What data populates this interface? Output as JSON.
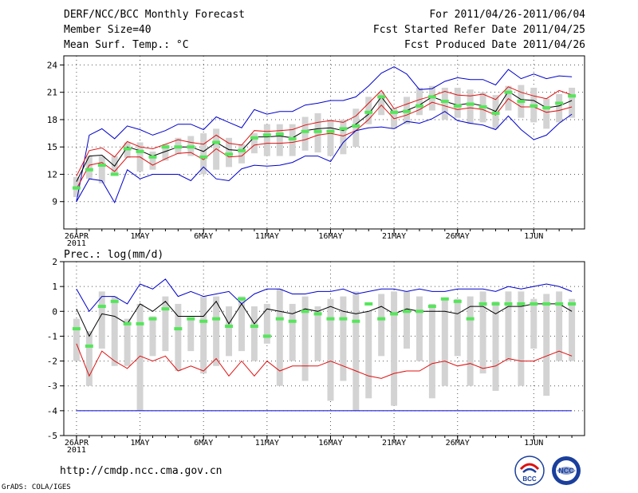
{
  "header": {
    "title": "DERF/NCC/BCC Monthly Forecast",
    "member_size": "Member Size=40",
    "variable": "Mean Surf. Temp.: °C",
    "period": "For 2011/04/26-2011/06/04",
    "started": "Fcst Started Refer Date 2011/04/25",
    "produced": "Fcst Produced Date 2011/04/26"
  },
  "footer": {
    "url": "http://cmdp.ncc.cma.gov.cn",
    "grads": "GrADS: COLA/IGES",
    "logo_bcc": "BCC",
    "logo_ncc": "NCC"
  },
  "colors": {
    "box": "#d3d3d3",
    "median": "#55e65a",
    "mean": "#000000",
    "inner": "#e01010",
    "outer": "#0000cc"
  },
  "chart_data": [
    {
      "type": "line",
      "title": "Mean Surf. Temp.: °C",
      "x_tick_labels": [
        "26APR",
        "1MAY",
        "6MAY",
        "11MAY",
        "16MAY",
        "21MAY",
        "26MAY",
        "1JUN"
      ],
      "x_tick_days": [
        1,
        6,
        11,
        16,
        21,
        26,
        31,
        37
      ],
      "year_label": "2011",
      "xlim": [
        0,
        41
      ],
      "ylim": [
        6,
        25
      ],
      "yticks": [
        9,
        12,
        15,
        18,
        21,
        24
      ],
      "ytick_labels": [
        "9",
        "12",
        "15",
        "18",
        "21",
        "24"
      ],
      "days": [
        1,
        2,
        3,
        4,
        5,
        6,
        7,
        8,
        9,
        10,
        11,
        12,
        13,
        14,
        15,
        16,
        17,
        18,
        19,
        20,
        21,
        22,
        23,
        24,
        25,
        26,
        27,
        28,
        29,
        30,
        31,
        32,
        33,
        34,
        35,
        36,
        37,
        38,
        39,
        40
      ],
      "series": [
        {
          "name": "max",
          "values": [
            9.0,
            16.3,
            17.0,
            15.9,
            17.3,
            16.9,
            16.3,
            16.8,
            17.5,
            17.5,
            16.9,
            18.3,
            17.7,
            17.1,
            19.1,
            18.6,
            18.9,
            18.9,
            19.6,
            19.8,
            20.1,
            20.1,
            20.5,
            21.7,
            23.1,
            23.8,
            23.0,
            21.3,
            21.4,
            22.2,
            22.6,
            22.4,
            22.4,
            21.8,
            23.5,
            22.5,
            23.0,
            22.5,
            22.8,
            22.7
          ]
        },
        {
          "name": "upper",
          "values": [
            11.8,
            14.6,
            14.9,
            13.9,
            15.6,
            15.0,
            14.8,
            15.3,
            15.8,
            15.5,
            15.3,
            16.3,
            15.4,
            15.2,
            16.8,
            16.7,
            16.8,
            16.9,
            17.4,
            17.7,
            17.9,
            17.7,
            18.4,
            19.8,
            21.2,
            19.2,
            19.7,
            20.2,
            20.6,
            21.1,
            20.7,
            20.6,
            20.8,
            20.2,
            21.6,
            21.0,
            20.6,
            20.3,
            21.2,
            20.7
          ]
        },
        {
          "name": "mean",
          "values": [
            11.2,
            14.0,
            14.1,
            12.9,
            15.0,
            14.6,
            14.0,
            14.5,
            15.0,
            15.0,
            14.5,
            15.5,
            14.7,
            14.6,
            16.1,
            16.1,
            16.2,
            16.0,
            16.8,
            17.0,
            17.1,
            16.8,
            17.5,
            18.6,
            20.5,
            18.7,
            19.0,
            19.6,
            20.5,
            20.0,
            19.6,
            19.8,
            19.5,
            18.9,
            21.1,
            20.2,
            20.1,
            19.3,
            19.5,
            20.1
          ]
        },
        {
          "name": "lower",
          "values": [
            10.4,
            13.0,
            13.3,
            12.3,
            13.9,
            13.9,
            13.0,
            13.7,
            14.3,
            14.4,
            13.6,
            14.8,
            13.9,
            14.0,
            15.2,
            15.4,
            15.4,
            15.5,
            15.8,
            16.3,
            16.5,
            16.2,
            16.8,
            18.0,
            19.6,
            18.1,
            18.5,
            19.1,
            19.9,
            19.5,
            19.1,
            19.3,
            19.1,
            18.5,
            20.3,
            19.4,
            19.4,
            18.8,
            19.0,
            19.4
          ]
        },
        {
          "name": "min",
          "values": [
            9.0,
            11.5,
            11.3,
            8.9,
            12.5,
            11.5,
            12.0,
            12.0,
            12.0,
            11.3,
            12.8,
            11.5,
            11.3,
            12.6,
            13.0,
            12.9,
            13.0,
            13.3,
            14.0,
            14.0,
            13.4,
            15.5,
            16.8,
            17.1,
            17.2,
            17.0,
            17.8,
            17.6,
            18.1,
            18.9,
            17.9,
            17.6,
            17.4,
            16.9,
            18.4,
            16.9,
            15.8,
            16.3,
            17.6,
            18.6
          ]
        },
        {
          "name": "box_top",
          "values": [
            11.7,
            14.0,
            14.0,
            14.0,
            15.5,
            15.5,
            14.5,
            15.3,
            16.0,
            16.2,
            16.5,
            17.0,
            16.0,
            15.3,
            16.5,
            17.5,
            17.5,
            17.5,
            18.3,
            18.7,
            18.0,
            18.0,
            19.2,
            20.5,
            21.0,
            19.3,
            20.5,
            21.5,
            21.7,
            21.5,
            21.5,
            21.3,
            21.0,
            20.7,
            21.7,
            21.8,
            21.5,
            20.3,
            20.8,
            21.5
          ]
        },
        {
          "name": "box_bottom",
          "values": [
            9.5,
            11.5,
            11.0,
            12.0,
            13.8,
            12.3,
            12.5,
            13.5,
            14.2,
            14.0,
            12.0,
            12.5,
            12.8,
            13.2,
            14.3,
            14.0,
            14.0,
            14.0,
            14.6,
            14.4,
            14.0,
            14.2,
            15.0,
            17.5,
            18.5,
            17.0,
            17.5,
            18.5,
            19.0,
            18.0,
            18.2,
            17.5,
            17.7,
            17.0,
            19.0,
            18.2,
            17.7,
            17.0,
            17.7,
            18.2
          ]
        },
        {
          "name": "median",
          "values": [
            10.5,
            12.5,
            13.0,
            12.0,
            14.8,
            14.5,
            13.9,
            15.0,
            15.0,
            15.0,
            13.9,
            15.5,
            14.2,
            14.6,
            16.0,
            16.3,
            16.4,
            15.9,
            16.7,
            16.7,
            16.7,
            17.0,
            17.3,
            18.8,
            20.5,
            18.8,
            18.9,
            19.5,
            20.5,
            20.0,
            19.5,
            19.7,
            19.4,
            18.7,
            21.0,
            20.0,
            19.5,
            19.3,
            19.8,
            20.6
          ]
        }
      ]
    },
    {
      "type": "line",
      "title": "Prec.: log(mm/d)",
      "x_tick_labels": [
        "26APR",
        "1MAY",
        "6MAY",
        "11MAY",
        "16MAY",
        "21MAY",
        "26MAY",
        "1JUN"
      ],
      "x_tick_days": [
        1,
        6,
        11,
        16,
        21,
        26,
        31,
        37
      ],
      "year_label": "2011",
      "xlim": [
        0,
        41
      ],
      "ylim": [
        -5,
        2
      ],
      "yticks": [
        -5,
        -4,
        -3,
        -2,
        -1,
        0,
        1,
        2
      ],
      "ytick_labels": [
        "-5",
        "-4",
        "-3",
        "-2",
        "-1",
        "0",
        "1",
        "2"
      ],
      "days": [
        1,
        2,
        3,
        4,
        5,
        6,
        7,
        8,
        9,
        10,
        11,
        12,
        13,
        14,
        15,
        16,
        17,
        18,
        19,
        20,
        21,
        22,
        23,
        24,
        25,
        26,
        27,
        28,
        29,
        30,
        31,
        32,
        33,
        34,
        35,
        36,
        37,
        38,
        39,
        40
      ],
      "series": [
        {
          "name": "max",
          "values": [
            0.9,
            0.0,
            0.6,
            0.6,
            0.3,
            1.1,
            0.9,
            1.3,
            0.6,
            0.8,
            0.6,
            0.7,
            0.8,
            0.3,
            0.7,
            0.9,
            0.9,
            0.7,
            0.7,
            0.8,
            0.8,
            0.9,
            0.7,
            0.8,
            0.9,
            0.9,
            0.8,
            0.9,
            0.8,
            0.8,
            0.9,
            0.9,
            0.9,
            0.8,
            1.0,
            0.9,
            1.0,
            1.1,
            1.0,
            0.8
          ]
        },
        {
          "name": "mean",
          "values": [
            0.1,
            -1.0,
            -0.1,
            -0.2,
            -0.5,
            0.3,
            0.0,
            0.4,
            -0.2,
            -0.2,
            -0.2,
            0.4,
            -0.5,
            0.3,
            -0.5,
            0.1,
            0.0,
            -0.1,
            0.1,
            0.0,
            0.2,
            0.0,
            -0.1,
            0.0,
            0.2,
            -0.1,
            0.1,
            0.0,
            0.0,
            0.0,
            -0.1,
            0.2,
            0.2,
            -0.1,
            0.2,
            0.2,
            0.3,
            0.3,
            0.3,
            0.0
          ]
        },
        {
          "name": "inner",
          "values": [
            -1.3,
            -2.6,
            -1.6,
            -2.0,
            -2.3,
            -1.8,
            -2.0,
            -1.8,
            -2.4,
            -2.2,
            -2.4,
            -1.9,
            -2.6,
            -2.0,
            -2.6,
            -2.0,
            -2.4,
            -2.2,
            -2.2,
            -2.2,
            -2.0,
            -2.2,
            -2.4,
            -2.6,
            -2.7,
            -2.5,
            -2.4,
            -2.4,
            -2.1,
            -2.0,
            -2.2,
            -2.1,
            -2.3,
            -2.2,
            -1.9,
            -2.0,
            -2.0,
            -1.8,
            -1.6,
            -1.8
          ]
        },
        {
          "name": "min",
          "values": [
            -4.0,
            -4.0,
            -4.0,
            -4.0,
            -4.0,
            -4.0,
            -4.0,
            -4.0,
            -4.0,
            -4.0,
            -4.0,
            -4.0,
            -4.0,
            -4.0,
            -4.0,
            -4.0,
            -4.0,
            -4.0,
            -4.0,
            -4.0,
            -4.0,
            -4.0,
            -4.0,
            -4.0,
            -4.0,
            -4.0,
            -4.0,
            -4.0,
            -4.0,
            -4.0,
            -4.0,
            -4.0,
            -4.0,
            -4.0,
            -4.0,
            -4.0,
            -4.0,
            -4.0,
            -4.0,
            -4.0
          ]
        },
        {
          "name": "box_top",
          "values": [
            -0.3,
            -0.8,
            0.8,
            0.6,
            -0.3,
            0.3,
            -0.2,
            0.6,
            0.3,
            -0.3,
            0.6,
            0.6,
            0.2,
            0.6,
            0.2,
            0.3,
            0.9,
            0.3,
            0.6,
            0.2,
            0.5,
            0.6,
            0.8,
            0.0,
            0.7,
            0.8,
            0.8,
            0.6,
            0.3,
            0.5,
            0.5,
            0.6,
            0.8,
            0.4,
            0.8,
            0.8,
            0.5,
            0.7,
            0.8,
            0.5
          ]
        },
        {
          "name": "box_bottom",
          "values": [
            -2.0,
            -3.0,
            -1.5,
            -2.2,
            -2.2,
            -4.0,
            -1.8,
            -1.6,
            -2.4,
            -1.6,
            -2.5,
            -2.2,
            -1.8,
            -1.6,
            -2.0,
            -1.3,
            -3.0,
            -2.0,
            -2.8,
            -2.0,
            -3.6,
            -2.8,
            -4.0,
            -3.5,
            -1.8,
            -3.8,
            -1.5,
            -2.0,
            -3.5,
            -3.0,
            -1.8,
            -3.0,
            -2.5,
            -3.2,
            -2.0,
            -3.0,
            -1.5,
            -3.4,
            -2.0,
            -2.0
          ]
        },
        {
          "name": "median",
          "values": [
            -0.7,
            -1.4,
            0.2,
            0.4,
            -0.5,
            -0.5,
            -0.3,
            0.1,
            -0.7,
            -0.3,
            -0.4,
            -0.3,
            -0.6,
            0.5,
            -0.6,
            -1.0,
            -0.3,
            -0.4,
            0.0,
            -0.1,
            -0.3,
            -0.3,
            -0.4,
            0.3,
            -0.3,
            -0.1,
            0.0,
            0.0,
            0.2,
            0.5,
            0.4,
            -0.3,
            0.3,
            0.3,
            0.3,
            0.3,
            0.3,
            0.3,
            0.3,
            0.3
          ]
        }
      ]
    }
  ]
}
